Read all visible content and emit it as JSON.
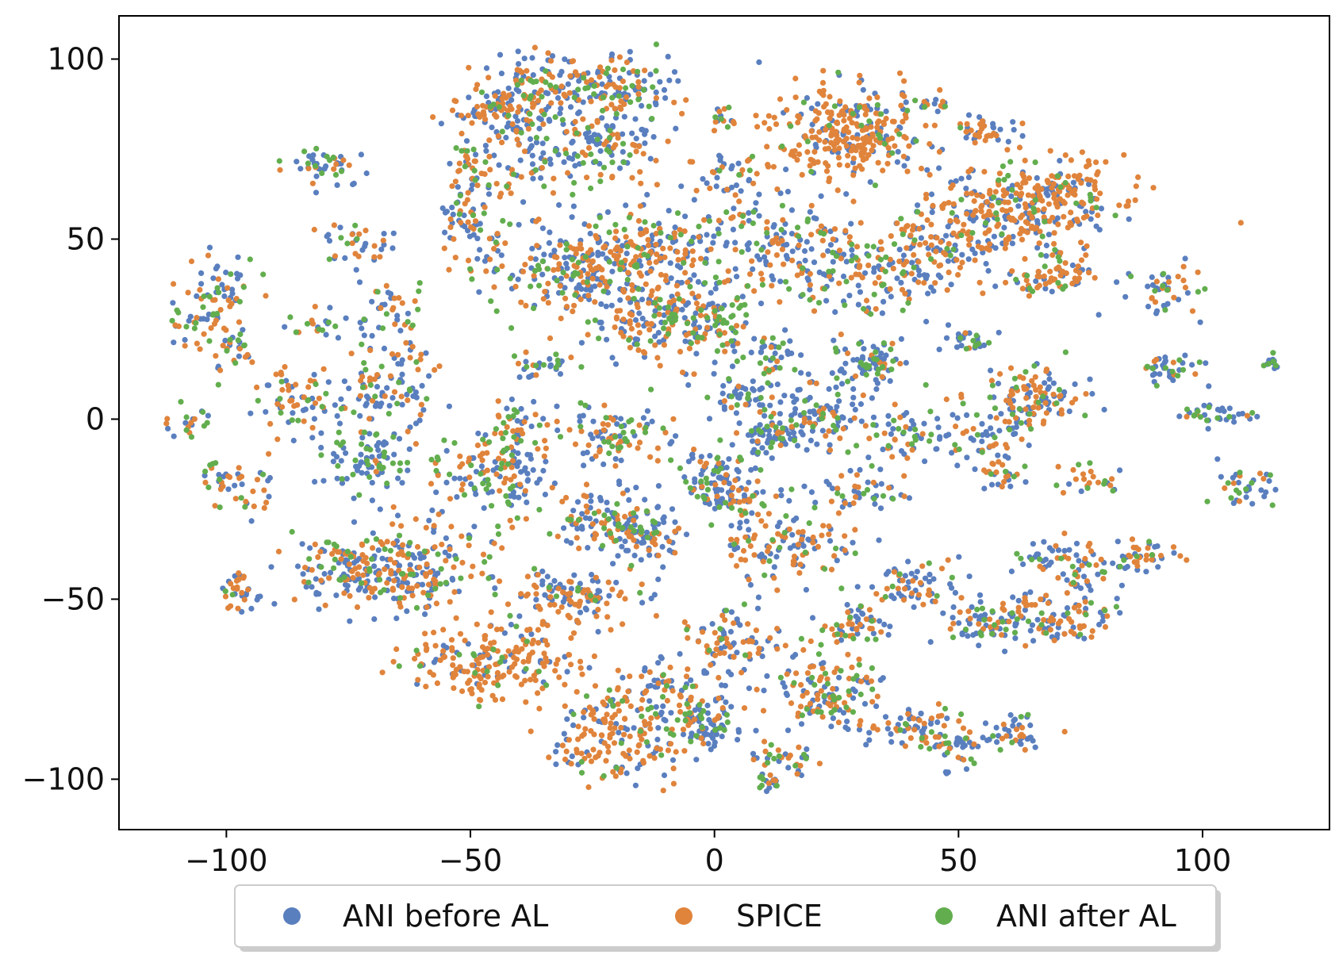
{
  "chart_data": {
    "type": "scatter",
    "title": "",
    "xlabel": "",
    "ylabel": "",
    "xlim": [
      -122,
      126
    ],
    "ylim": [
      -114,
      112
    ],
    "xticks": [
      -100,
      -50,
      0,
      50,
      100
    ],
    "yticks": [
      -100,
      -50,
      0,
      50,
      100
    ],
    "grid": false,
    "legend_position": "bottom-center-outside",
    "tick_label_format": "unicode-minus",
    "series": [
      {
        "name": "ANI before AL",
        "color": "#5a7fbf"
      },
      {
        "name": "SPICE",
        "color": "#e0843c"
      },
      {
        "name": "ANI after AL",
        "color": "#62ae4e"
      }
    ],
    "clusters": [
      {
        "x": -38,
        "y": 92,
        "sx": 6,
        "sy": 5,
        "n": 90,
        "w": [
          0.4,
          0.45,
          0.15
        ]
      },
      {
        "x": -26,
        "y": 93,
        "sx": 7,
        "sy": 4,
        "n": 70,
        "w": [
          0.45,
          0.35,
          0.2
        ]
      },
      {
        "x": -17,
        "y": 93,
        "sx": 5,
        "sy": 4,
        "n": 60,
        "w": [
          0.45,
          0.35,
          0.2
        ]
      },
      {
        "x": -47,
        "y": 84,
        "sx": 5,
        "sy": 4,
        "n": 70,
        "w": [
          0.4,
          0.45,
          0.15
        ]
      },
      {
        "x": -36,
        "y": 75,
        "sx": 7,
        "sy": 7,
        "n": 120,
        "w": [
          0.5,
          0.3,
          0.2
        ]
      },
      {
        "x": -22,
        "y": 78,
        "sx": 6,
        "sy": 6,
        "n": 90,
        "w": [
          0.5,
          0.3,
          0.2
        ]
      },
      {
        "x": -50,
        "y": 65,
        "sx": 3,
        "sy": 8,
        "n": 60,
        "w": [
          0.45,
          0.4,
          0.15
        ]
      },
      {
        "x": -51,
        "y": 55,
        "sx": 3,
        "sy": 4,
        "n": 30,
        "w": [
          0.45,
          0.4,
          0.15
        ]
      },
      {
        "x": -80,
        "y": 70,
        "sx": 5,
        "sy": 2.5,
        "n": 45,
        "w": [
          0.5,
          0.3,
          0.2
        ]
      },
      {
        "x": -73,
        "y": 49,
        "sx": 4,
        "sy": 3,
        "n": 35,
        "w": [
          0.5,
          0.35,
          0.15
        ]
      },
      {
        "x": -101,
        "y": 34,
        "sx": 4,
        "sy": 6,
        "n": 60,
        "w": [
          0.35,
          0.45,
          0.2
        ]
      },
      {
        "x": -107,
        "y": 27,
        "sx": 2.5,
        "sy": 3,
        "n": 25,
        "w": [
          0.3,
          0.3,
          0.4
        ]
      },
      {
        "x": -99,
        "y": 20,
        "sx": 2,
        "sy": 4,
        "n": 25,
        "w": [
          0.5,
          0.3,
          0.2
        ]
      },
      {
        "x": -82,
        "y": 26,
        "sx": 3,
        "sy": 2,
        "n": 20,
        "w": [
          0.4,
          0.3,
          0.3
        ]
      },
      {
        "x": -67,
        "y": 28,
        "sx": 4,
        "sy": 6,
        "n": 45,
        "w": [
          0.4,
          0.45,
          0.15
        ]
      },
      {
        "x": -85,
        "y": 5,
        "sx": 5,
        "sy": 5,
        "n": 70,
        "w": [
          0.35,
          0.45,
          0.2
        ]
      },
      {
        "x": -70,
        "y": 7,
        "sx": 4,
        "sy": 5,
        "n": 50,
        "w": [
          0.5,
          0.3,
          0.2
        ]
      },
      {
        "x": -61,
        "y": 12,
        "sx": 4,
        "sy": 8,
        "n": 40,
        "w": [
          0.45,
          0.3,
          0.25
        ]
      },
      {
        "x": -107,
        "y": 0,
        "sx": 2,
        "sy": 2,
        "n": 20,
        "w": [
          0.4,
          0.4,
          0.2
        ]
      },
      {
        "x": -71,
        "y": -11,
        "sx": 4.5,
        "sy": 4.5,
        "n": 90,
        "w": [
          0.6,
          0.05,
          0.35
        ]
      },
      {
        "x": -97,
        "y": -19,
        "sx": 4,
        "sy": 3.5,
        "n": 45,
        "w": [
          0.45,
          0.35,
          0.2
        ]
      },
      {
        "x": -62,
        "y": -42,
        "sx": 8,
        "sy": 7,
        "n": 230,
        "w": [
          0.4,
          0.45,
          0.15
        ]
      },
      {
        "x": -76,
        "y": -42,
        "sx": 5,
        "sy": 5,
        "n": 90,
        "w": [
          0.5,
          0.3,
          0.2
        ]
      },
      {
        "x": -97,
        "y": -48,
        "sx": 2.5,
        "sy": 4,
        "n": 35,
        "w": [
          0.45,
          0.35,
          0.2
        ]
      },
      {
        "x": -25,
        "y": 42,
        "sx": 11,
        "sy": 7,
        "n": 320,
        "w": [
          0.4,
          0.45,
          0.15
        ]
      },
      {
        "x": -10,
        "y": 50,
        "sx": 6,
        "sy": 4,
        "n": 80,
        "w": [
          0.4,
          0.45,
          0.15
        ]
      },
      {
        "x": -12,
        "y": 28,
        "sx": 6,
        "sy": 6,
        "n": 140,
        "w": [
          0.4,
          0.45,
          0.15
        ]
      },
      {
        "x": 0,
        "y": 28,
        "sx": 4,
        "sy": 6,
        "n": 90,
        "w": [
          0.45,
          0.25,
          0.3
        ]
      },
      {
        "x": 10,
        "y": 18,
        "sx": 4,
        "sy": 4,
        "n": 45,
        "w": [
          0.5,
          0.2,
          0.3
        ]
      },
      {
        "x": 4,
        "y": 68,
        "sx": 6,
        "sy": 3,
        "n": 45,
        "w": [
          0.5,
          0.3,
          0.2
        ]
      },
      {
        "x": 3,
        "y": 82,
        "sx": 2,
        "sy": 2,
        "n": 15,
        "w": [
          0.3,
          0.5,
          0.2
        ]
      },
      {
        "x": 5,
        "y": 57,
        "sx": 2,
        "sy": 2,
        "n": 15,
        "w": [
          0.3,
          0.5,
          0.2
        ]
      },
      {
        "x": 28,
        "y": 80,
        "sx": 8,
        "sy": 6,
        "n": 300,
        "w": [
          0.3,
          0.6,
          0.1
        ]
      },
      {
        "x": 44,
        "y": 87,
        "sx": 1.5,
        "sy": 1,
        "n": 12,
        "w": [
          0.7,
          0.1,
          0.2
        ]
      },
      {
        "x": 65,
        "y": 60,
        "sx": 10,
        "sy": 6,
        "n": 320,
        "w": [
          0.3,
          0.6,
          0.1
        ]
      },
      {
        "x": 56,
        "y": 80,
        "sx": 4,
        "sy": 2.5,
        "n": 40,
        "w": [
          0.3,
          0.6,
          0.1
        ]
      },
      {
        "x": 69,
        "y": 40,
        "sx": 4,
        "sy": 3,
        "n": 70,
        "w": [
          0.3,
          0.6,
          0.1
        ]
      },
      {
        "x": 50,
        "y": 50,
        "sx": 7,
        "sy": 6,
        "n": 110,
        "w": [
          0.35,
          0.5,
          0.15
        ]
      },
      {
        "x": 17,
        "y": 45,
        "sx": 8,
        "sy": 7,
        "n": 170,
        "w": [
          0.45,
          0.35,
          0.2
        ]
      },
      {
        "x": 36,
        "y": 40,
        "sx": 7,
        "sy": 5,
        "n": 110,
        "w": [
          0.45,
          0.35,
          0.2
        ]
      },
      {
        "x": 92,
        "y": 35,
        "sx": 4,
        "sy": 4,
        "n": 45,
        "w": [
          0.5,
          0.3,
          0.2
        ]
      },
      {
        "x": 52,
        "y": 22,
        "sx": 2.5,
        "sy": 1.5,
        "n": 30,
        "w": [
          0.6,
          0.1,
          0.3
        ]
      },
      {
        "x": 32,
        "y": 16,
        "sx": 4,
        "sy": 3,
        "n": 80,
        "w": [
          0.55,
          0.2,
          0.25
        ]
      },
      {
        "x": 65,
        "y": 6,
        "sx": 5,
        "sy": 5,
        "n": 120,
        "w": [
          0.45,
          0.4,
          0.15
        ]
      },
      {
        "x": 94,
        "y": 14,
        "sx": 4,
        "sy": 2,
        "n": 40,
        "w": [
          0.55,
          0.15,
          0.3
        ]
      },
      {
        "x": 114,
        "y": 16,
        "sx": 1,
        "sy": 1,
        "n": 12,
        "w": [
          0.4,
          0.1,
          0.5
        ]
      },
      {
        "x": 101,
        "y": 1,
        "sx": 3.5,
        "sy": 1.5,
        "n": 35,
        "w": [
          0.6,
          0.15,
          0.25
        ]
      },
      {
        "x": 109,
        "y": -20,
        "sx": 3,
        "sy": 2.5,
        "n": 35,
        "w": [
          0.5,
          0.2,
          0.3
        ]
      },
      {
        "x": -45,
        "y": -15,
        "sx": 6,
        "sy": 6,
        "n": 130,
        "w": [
          0.45,
          0.35,
          0.2
        ]
      },
      {
        "x": -40,
        "y": -2,
        "sx": 4,
        "sy": 4,
        "n": 50,
        "w": [
          0.45,
          0.35,
          0.2
        ]
      },
      {
        "x": -20,
        "y": -5,
        "sx": 5,
        "sy": 4,
        "n": 90,
        "w": [
          0.4,
          0.4,
          0.2
        ]
      },
      {
        "x": -35,
        "y": 15,
        "sx": 3,
        "sy": 2,
        "n": 30,
        "w": [
          0.5,
          0.2,
          0.3
        ]
      },
      {
        "x": -24,
        "y": -28,
        "sx": 5,
        "sy": 4,
        "n": 90,
        "w": [
          0.4,
          0.4,
          0.2
        ]
      },
      {
        "x": -14,
        "y": -32,
        "sx": 4,
        "sy": 4,
        "n": 90,
        "w": [
          0.6,
          0.25,
          0.15
        ]
      },
      {
        "x": 0,
        "y": -15,
        "sx": 4,
        "sy": 4,
        "n": 70,
        "w": [
          0.5,
          0.3,
          0.2
        ]
      },
      {
        "x": 4,
        "y": -22,
        "sx": 5,
        "sy": 3,
        "n": 60,
        "w": [
          0.4,
          0.4,
          0.2
        ]
      },
      {
        "x": 12,
        "y": -5,
        "sx": 4,
        "sy": 3,
        "n": 70,
        "w": [
          0.6,
          0.15,
          0.25
        ]
      },
      {
        "x": 20,
        "y": 2,
        "sx": 5,
        "sy": 4,
        "n": 90,
        "w": [
          0.6,
          0.2,
          0.2
        ]
      },
      {
        "x": 38,
        "y": -5,
        "sx": 5,
        "sy": 4,
        "n": 60,
        "w": [
          0.55,
          0.25,
          0.2
        ]
      },
      {
        "x": 30,
        "y": -20,
        "sx": 5,
        "sy": 3,
        "n": 50,
        "w": [
          0.55,
          0.25,
          0.2
        ]
      },
      {
        "x": 5,
        "y": 5,
        "sx": 4,
        "sy": 3,
        "n": 45,
        "w": [
          0.55,
          0.15,
          0.3
        ]
      },
      {
        "x": 10,
        "y": -35,
        "sx": 6,
        "sy": 5,
        "n": 70,
        "w": [
          0.4,
          0.45,
          0.15
        ]
      },
      {
        "x": 20,
        "y": -35,
        "sx": 5,
        "sy": 4,
        "n": 50,
        "w": [
          0.35,
          0.45,
          0.2
        ]
      },
      {
        "x": -28,
        "y": -50,
        "sx": 7,
        "sy": 4,
        "n": 120,
        "w": [
          0.35,
          0.55,
          0.1
        ]
      },
      {
        "x": -45,
        "y": -67,
        "sx": 9,
        "sy": 5,
        "n": 200,
        "w": [
          0.2,
          0.7,
          0.1
        ]
      },
      {
        "x": -20,
        "y": -88,
        "sx": 6,
        "sy": 7,
        "n": 180,
        "w": [
          0.3,
          0.6,
          0.1
        ]
      },
      {
        "x": -10,
        "y": -76,
        "sx": 4,
        "sy": 5,
        "n": 60,
        "w": [
          0.35,
          0.5,
          0.15
        ]
      },
      {
        "x": -2,
        "y": -85,
        "sx": 4,
        "sy": 4,
        "n": 90,
        "w": [
          0.6,
          0.2,
          0.2
        ]
      },
      {
        "x": 4,
        "y": -62,
        "sx": 5,
        "sy": 5,
        "n": 90,
        "w": [
          0.4,
          0.45,
          0.15
        ]
      },
      {
        "x": 13,
        "y": -95,
        "sx": 4,
        "sy": 3,
        "n": 40,
        "w": [
          0.4,
          0.35,
          0.25
        ]
      },
      {
        "x": 11,
        "y": -101,
        "sx": 1.5,
        "sy": 1.5,
        "n": 15,
        "w": [
          0.7,
          0.1,
          0.2
        ]
      },
      {
        "x": 23,
        "y": -76,
        "sx": 6,
        "sy": 6,
        "n": 130,
        "w": [
          0.35,
          0.45,
          0.2
        ]
      },
      {
        "x": 29,
        "y": -57,
        "sx": 4,
        "sy": 3,
        "n": 50,
        "w": [
          0.45,
          0.35,
          0.2
        ]
      },
      {
        "x": 40,
        "y": -47,
        "sx": 5,
        "sy": 3,
        "n": 70,
        "w": [
          0.6,
          0.3,
          0.1
        ]
      },
      {
        "x": 40,
        "y": -85,
        "sx": 6,
        "sy": 3,
        "n": 70,
        "w": [
          0.4,
          0.35,
          0.25
        ]
      },
      {
        "x": 50,
        "y": -92,
        "sx": 3,
        "sy": 3,
        "n": 40,
        "w": [
          0.6,
          0.2,
          0.2
        ]
      },
      {
        "x": 61,
        "y": -87,
        "sx": 3,
        "sy": 2.5,
        "n": 40,
        "w": [
          0.65,
          0.2,
          0.15
        ]
      },
      {
        "x": 59,
        "y": -15,
        "sx": 2,
        "sy": 3,
        "n": 25,
        "w": [
          0.45,
          0.35,
          0.2
        ]
      },
      {
        "x": 76,
        "y": -17,
        "sx": 3,
        "sy": 2,
        "n": 25,
        "w": [
          0.3,
          0.5,
          0.2
        ]
      },
      {
        "x": 88,
        "y": -38,
        "sx": 4,
        "sy": 2,
        "n": 40,
        "w": [
          0.3,
          0.6,
          0.1
        ]
      },
      {
        "x": 69,
        "y": -55,
        "sx": 8,
        "sy": 4,
        "n": 120,
        "w": [
          0.4,
          0.45,
          0.15
        ]
      },
      {
        "x": 55,
        "y": -57,
        "sx": 4,
        "sy": 3,
        "n": 50,
        "w": [
          0.55,
          0.3,
          0.15
        ]
      },
      {
        "x": 73,
        "y": -40,
        "sx": 6,
        "sy": 4,
        "n": 70,
        "w": [
          0.5,
          0.35,
          0.15
        ]
      },
      {
        "x": 55,
        "y": -5,
        "sx": 4,
        "sy": 5,
        "n": 50,
        "w": [
          0.55,
          0.3,
          0.15
        ]
      }
    ]
  }
}
